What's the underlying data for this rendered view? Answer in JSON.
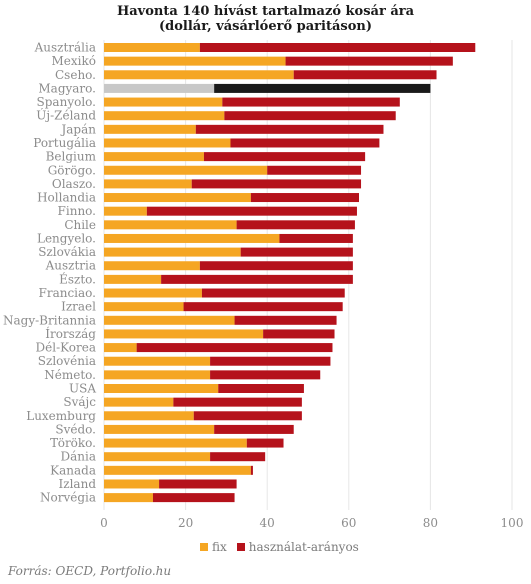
{
  "title_line1": "Havonta 140 hívást tartalmazó kosár ára",
  "title_line2": "(dollár, vásárlóerő paritáson)",
  "source": "Forrás: OECD, Portfolio.hu",
  "colors": {
    "fix": "#F5A623",
    "usage": "#B5121B",
    "highlight_fix": "#C8C8C8",
    "highlight_usage": "#1a1a1a"
  },
  "chart_data": {
    "type": "bar",
    "orientation": "horizontal",
    "stacked": true,
    "title": "Havonta 140 hívást tartalmazó kosár ára (dollár, vásárlóerő paritáson)",
    "xlim": [
      0,
      100
    ],
    "xticks": [
      0,
      20,
      40,
      60,
      80,
      100
    ],
    "highlight": "Magyaro.",
    "legend_position": "bottom",
    "categories": [
      "Ausztrália",
      "Mexikó",
      "Cseho.",
      "Magyaro.",
      "Spanyolo.",
      "Új-Zéland",
      "Japán",
      "Portugália",
      "Belgium",
      "Görögo.",
      "Olaszo.",
      "Hollandia",
      "Finno.",
      "Chile",
      "Lengyelo.",
      "Szlovákia",
      "Ausztria",
      "Észto.",
      "Franciao.",
      "Izrael",
      "Nagy-Britannia",
      "Írország",
      "Dél-Korea",
      "Szlovénia",
      "Németo.",
      "USA",
      "Svájc",
      "Luxemburg",
      "Svédo.",
      "Töröko.",
      "Dánia",
      "Kanada",
      "Izland",
      "Norvégia"
    ],
    "series": [
      {
        "name": "fix",
        "values": [
          23.5,
          44.5,
          46.5,
          27.0,
          29.0,
          29.5,
          22.5,
          31.0,
          24.5,
          40.0,
          21.5,
          36.0,
          10.5,
          32.5,
          43.0,
          33.5,
          23.5,
          14.0,
          24.0,
          19.5,
          32.0,
          39.0,
          8.0,
          26.0,
          26.0,
          28.0,
          17.0,
          22.0,
          27.0,
          35.0,
          26.0,
          36.0,
          13.5,
          12.0
        ]
      },
      {
        "name": "használat-arányos",
        "values": [
          67.5,
          41.0,
          35.0,
          53.0,
          43.5,
          42.0,
          46.0,
          36.5,
          39.5,
          23.0,
          41.5,
          26.5,
          51.5,
          29.0,
          18.0,
          27.5,
          37.5,
          47.0,
          35.0,
          39.0,
          25.0,
          17.5,
          48.0,
          29.5,
          27.0,
          21.0,
          31.5,
          26.5,
          19.5,
          9.0,
          13.5,
          0.5,
          19.0,
          20.0
        ]
      }
    ]
  }
}
